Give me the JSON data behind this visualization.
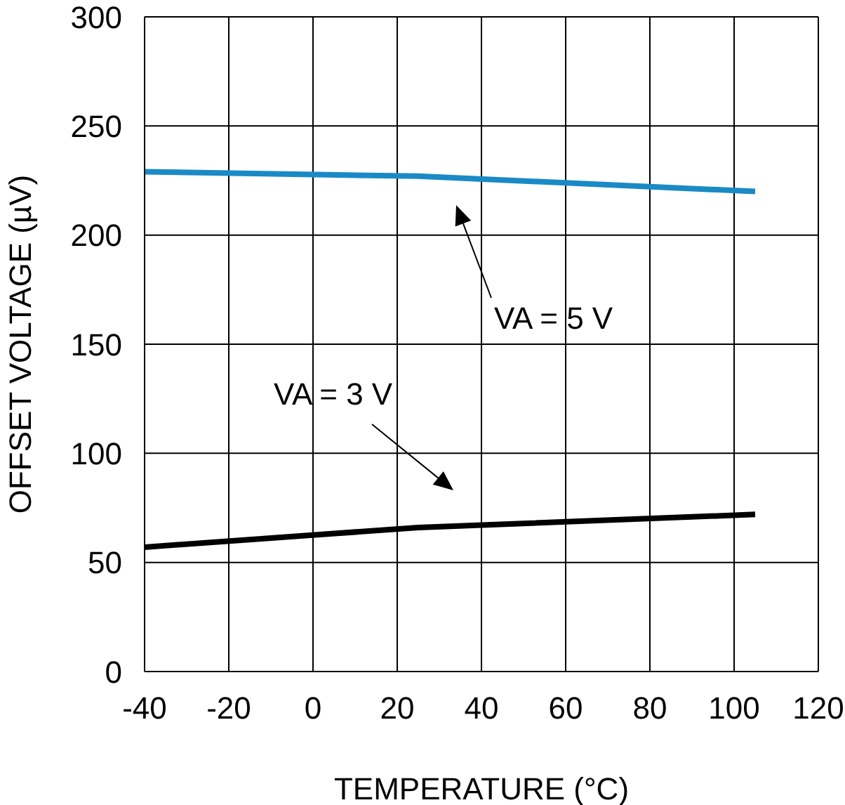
{
  "chart_data": {
    "type": "line",
    "xlabel": "TEMPERATURE (°C)",
    "ylabel": "OFFSET VOLTAGE (µV)",
    "series": [
      {
        "color": "#1a8ac6",
        "x": [
          -40,
          25,
          105
        ],
        "values": [
          229,
          227,
          220
        ]
      },
      {
        "color": "#000000",
        "x": [
          -40,
          25,
          105
        ],
        "values": [
          57,
          66,
          72
        ]
      }
    ],
    "annotations": [
      "VA = 5 V",
      "VA = 3 V"
    ],
    "xlim": [
      -40,
      120
    ],
    "xticks": [
      -40,
      -20,
      0,
      20,
      40,
      60,
      80,
      100,
      120
    ],
    "ylim": [
      0,
      300
    ],
    "yticks": [
      0,
      50,
      100,
      150,
      200,
      250,
      300
    ],
    "grid": true,
    "legend": false,
    "marker": "none",
    "line_style": "solid"
  }
}
